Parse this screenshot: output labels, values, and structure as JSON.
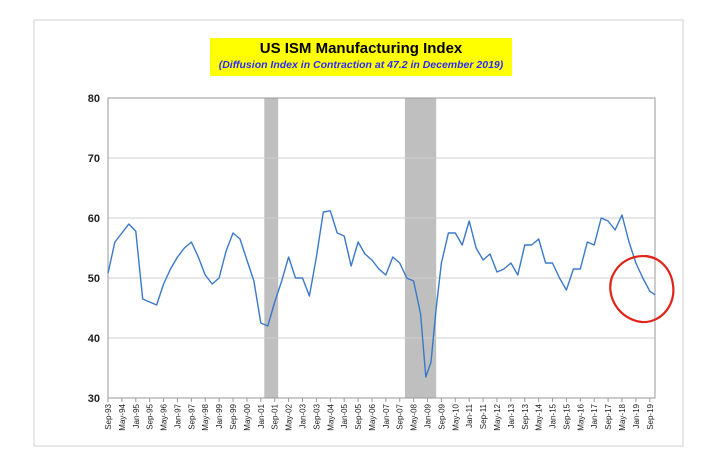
{
  "chart_data": {
    "type": "line",
    "title": "US ISM Manufacturing Index",
    "subtitle": "(Diffusion Index in Contraction at  47.2 in December 2019)",
    "xlabel": "",
    "ylabel": "",
    "ylim": [
      30,
      80
    ],
    "yticks": [
      30,
      40,
      50,
      60,
      70,
      80
    ],
    "xticks": [
      "Sep-93",
      "May-94",
      "Jan-95",
      "Sep-95",
      "May-96",
      "Jan-97",
      "Sep-97",
      "May-98",
      "Jan-99",
      "Sep-99",
      "May-00",
      "Jan-01",
      "Sep-01",
      "May-02",
      "Jan-03",
      "Sep-03",
      "May-04",
      "Jan-05",
      "Sep-05",
      "May-06",
      "Jan-07",
      "Sep-07",
      "May-08",
      "Jan-09",
      "Sep-09",
      "May-10",
      "Jan-11",
      "Sep-11",
      "May-12",
      "Jan-13",
      "Sep-13",
      "May-14",
      "Jan-15",
      "Sep-15",
      "May-16",
      "Jan-17",
      "Sep-17",
      "May-18",
      "Jan-19",
      "Sep-19"
    ],
    "x_start": "Sep-93",
    "x_end": "Dec-19",
    "recessions": [
      [
        "Mar-01",
        "Nov-01"
      ],
      [
        "Dec-07",
        "Jun-09"
      ]
    ],
    "grid": "horizontal",
    "series": [
      {
        "color": "#3a78c9",
        "x": [
          "Sep-93",
          "Jan-94",
          "May-94",
          "Sep-94",
          "Jan-95",
          "Mar-95",
          "May-95",
          "Sep-95",
          "Jan-96",
          "May-96",
          "Sep-96",
          "Jan-97",
          "May-97",
          "Sep-97",
          "Jan-98",
          "May-98",
          "Sep-98",
          "Jan-99",
          "May-99",
          "Sep-99",
          "Jan-00",
          "May-00",
          "Sep-00",
          "Jan-01",
          "May-01",
          "Sep-01",
          "Jan-02",
          "May-02",
          "Sep-02",
          "Jan-03",
          "May-03",
          "Sep-03",
          "Jan-04",
          "May-04",
          "Sep-04",
          "Jan-05",
          "May-05",
          "Sep-05",
          "Jan-06",
          "May-06",
          "Sep-06",
          "Jan-07",
          "May-07",
          "Sep-07",
          "Jan-08",
          "May-08",
          "Sep-08",
          "Dec-08",
          "Mar-09",
          "Jun-09",
          "Sep-09",
          "Jan-10",
          "May-10",
          "Sep-10",
          "Jan-11",
          "May-11",
          "Sep-11",
          "Jan-12",
          "May-12",
          "Sep-12",
          "Jan-13",
          "May-13",
          "Sep-13",
          "Jan-14",
          "May-14",
          "Sep-14",
          "Jan-15",
          "May-15",
          "Sep-15",
          "Jan-16",
          "May-16",
          "Sep-16",
          "Jan-17",
          "May-17",
          "Sep-17",
          "Jan-18",
          "May-18",
          "Sep-18",
          "Jan-19",
          "May-19",
          "Sep-19",
          "Dec-19"
        ],
        "values": [
          50.8,
          56.0,
          57.5,
          59.0,
          57.8,
          52.0,
          46.5,
          46.0,
          45.5,
          49.0,
          51.5,
          53.5,
          55.0,
          56.0,
          53.5,
          50.5,
          49.0,
          50.0,
          54.5,
          57.5,
          56.5,
          53.0,
          49.5,
          42.5,
          42.0,
          46.0,
          49.5,
          53.5,
          50.0,
          50.0,
          47.0,
          53.5,
          61.0,
          61.2,
          57.5,
          57.0,
          52.0,
          56.0,
          54.0,
          53.0,
          51.5,
          50.5,
          53.5,
          52.5,
          50.0,
          49.5,
          44.0,
          33.5,
          36.0,
          45.0,
          52.5,
          57.5,
          57.5,
          55.5,
          59.5,
          55.0,
          53.0,
          54.0,
          51.0,
          51.5,
          52.5,
          50.5,
          55.5,
          55.5,
          56.5,
          52.5,
          52.5,
          50.0,
          48.0,
          51.5,
          51.5,
          56.0,
          55.5,
          60.0,
          59.5,
          58.0,
          60.5,
          56.0,
          52.5,
          50.0,
          47.8,
          47.2
        ]
      }
    ]
  }
}
